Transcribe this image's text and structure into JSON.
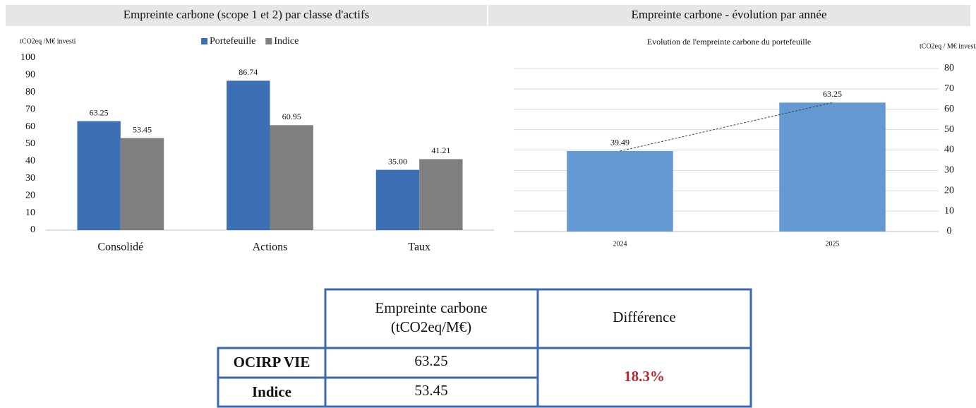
{
  "chart_data": [
    {
      "type": "bar",
      "title": "Empreinte carbone (scope 1 et 2) par classe d'actifs",
      "y_label": "tCO2eq /M€ investi",
      "categories": [
        "Consolidé",
        "Actions",
        "Taux"
      ],
      "series": [
        {
          "name": "Portefeuille",
          "color": "#3d6fb4",
          "values": [
            63.25,
            86.74,
            35.0
          ],
          "value_labels": [
            "63.25",
            "86.74",
            "35.00"
          ]
        },
        {
          "name": "Indice",
          "color": "#7f7f7f",
          "values": [
            53.45,
            60.95,
            41.21
          ]
        }
      ],
      "ylim": [
        0,
        100
      ],
      "yticks": [
        0,
        10,
        20,
        30,
        40,
        50,
        60,
        70,
        80,
        90,
        100
      ],
      "grid": false,
      "y_axis_side": "left"
    },
    {
      "type": "bar",
      "title": "Empreinte carbone - évolution par année",
      "subtitle": "Evolution de l'empreinte carbone du portefeuille",
      "y_label": "tCO2eq / M€ investi",
      "categories": [
        "2024",
        "2025"
      ],
      "series": [
        {
          "color": "#6499d2",
          "values": [
            39.49,
            63.25
          ]
        }
      ],
      "ylim": [
        0,
        80
      ],
      "yticks": [
        0,
        10,
        20,
        30,
        40,
        50,
        60,
        70,
        80
      ],
      "grid": true,
      "y_axis_side": "right",
      "trendline": true
    }
  ],
  "table": {
    "header": {
      "measure": [
        "Empreinte carbone",
        "(tCO2eq/M€)"
      ],
      "difference": "Différence"
    },
    "rows": [
      [
        "OCIRP VIE",
        "63.25"
      ],
      [
        "Indice",
        "53.45"
      ]
    ],
    "difference": "18.3%"
  }
}
